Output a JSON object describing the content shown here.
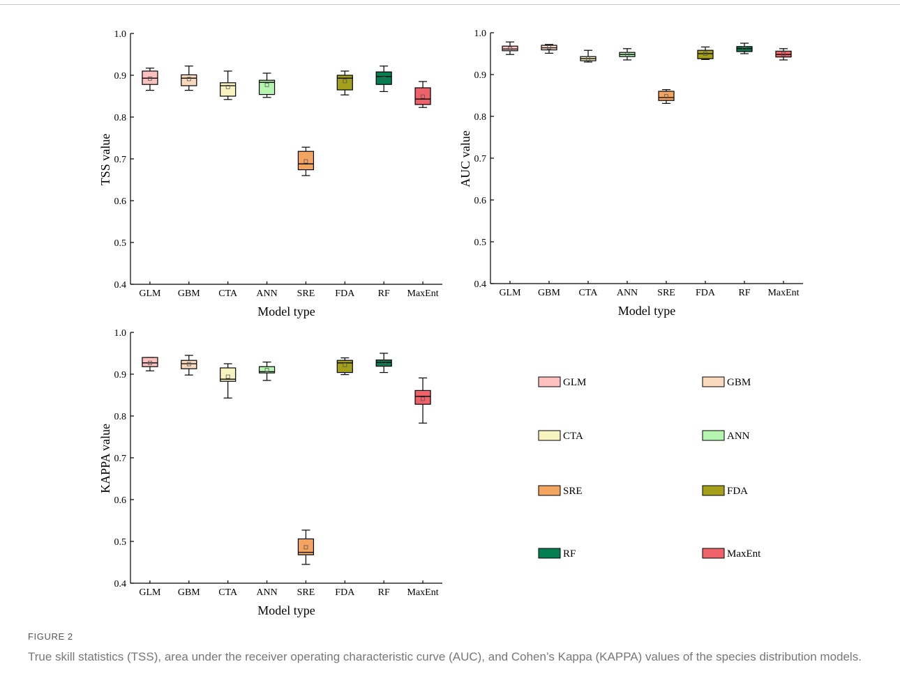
{
  "caption": {
    "label": "FIGURE 2",
    "text": "True skill statistics (TSS), area under the receiver operating characteristic curve (AUC), and Cohen’s Kappa (KAPPA) values of the species distribution models."
  },
  "legend": [
    {
      "name": "GLM",
      "color": "#FFC0C0"
    },
    {
      "name": "GBM",
      "color": "#FAD9BC"
    },
    {
      "name": "CTA",
      "color": "#F7F4C0"
    },
    {
      "name": "ANN",
      "color": "#B4F5B0"
    },
    {
      "name": "SRE",
      "color": "#F4A461"
    },
    {
      "name": "FDA",
      "color": "#A4A01C"
    },
    {
      "name": "RF",
      "color": "#037F51"
    },
    {
      "name": "MaxEnt",
      "color": "#F0626A"
    }
  ],
  "chart_data": [
    {
      "type": "box",
      "xlabel": "Model type",
      "ylabel": "TSS value",
      "ylim": [
        0.4,
        1.0
      ],
      "yticks": [
        "0.4",
        "0.5",
        "0.6",
        "0.7",
        "0.8",
        "0.9",
        "1.0"
      ],
      "categories": [
        "GLM",
        "GBM",
        "CTA",
        "ANN",
        "SRE",
        "FDA",
        "RF",
        "MaxEnt"
      ],
      "boxes": [
        {
          "min": 0.864,
          "q1": 0.878,
          "median": 0.893,
          "q3": 0.91,
          "max": 0.917,
          "mean": 0.892
        },
        {
          "min": 0.864,
          "q1": 0.875,
          "median": 0.893,
          "q3": 0.901,
          "max": 0.922,
          "mean": 0.891
        },
        {
          "min": 0.842,
          "q1": 0.85,
          "median": 0.875,
          "q3": 0.882,
          "max": 0.91,
          "mean": 0.872
        },
        {
          "min": 0.847,
          "q1": 0.854,
          "median": 0.883,
          "q3": 0.888,
          "max": 0.905,
          "mean": 0.877
        },
        {
          "min": 0.66,
          "q1": 0.674,
          "median": 0.688,
          "q3": 0.718,
          "max": 0.728,
          "mean": 0.694
        },
        {
          "min": 0.853,
          "q1": 0.865,
          "median": 0.893,
          "q3": 0.9,
          "max": 0.91,
          "mean": 0.886
        },
        {
          "min": 0.861,
          "q1": 0.878,
          "median": 0.897,
          "q3": 0.908,
          "max": 0.922,
          "mean": 0.892
        },
        {
          "min": 0.823,
          "q1": 0.83,
          "median": 0.843,
          "q3": 0.87,
          "max": 0.885,
          "mean": 0.849
        }
      ]
    },
    {
      "type": "box",
      "xlabel": "Model type",
      "ylabel": "AUC value",
      "ylim": [
        0.4,
        1.0
      ],
      "yticks": [
        "0.4",
        "0.5",
        "0.6",
        "0.7",
        "0.8",
        "0.9",
        "1.0"
      ],
      "categories": [
        "GLM",
        "GBM",
        "CTA",
        "ANN",
        "SRE",
        "FDA",
        "RF",
        "MaxEnt"
      ],
      "boxes": [
        {
          "min": 0.948,
          "q1": 0.957,
          "median": 0.961,
          "q3": 0.968,
          "max": 0.978,
          "mean": 0.962
        },
        {
          "min": 0.951,
          "q1": 0.959,
          "median": 0.964,
          "q3": 0.97,
          "max": 0.972,
          "mean": 0.965
        },
        {
          "min": 0.93,
          "q1": 0.933,
          "median": 0.938,
          "q3": 0.943,
          "max": 0.958,
          "mean": 0.938
        },
        {
          "min": 0.935,
          "q1": 0.943,
          "median": 0.948,
          "q3": 0.953,
          "max": 0.962,
          "mean": 0.948
        },
        {
          "min": 0.831,
          "q1": 0.838,
          "median": 0.845,
          "q3": 0.86,
          "max": 0.864,
          "mean": 0.848
        },
        {
          "min": 0.936,
          "q1": 0.938,
          "median": 0.95,
          "q3": 0.958,
          "max": 0.966,
          "mean": 0.95
        },
        {
          "min": 0.95,
          "q1": 0.955,
          "median": 0.962,
          "q3": 0.967,
          "max": 0.975,
          "mean": 0.962
        },
        {
          "min": 0.935,
          "q1": 0.942,
          "median": 0.948,
          "q3": 0.956,
          "max": 0.962,
          "mean": 0.949
        }
      ]
    },
    {
      "type": "box",
      "xlabel": "Model type",
      "ylabel": "KAPPA value",
      "ylim": [
        0.4,
        1.0
      ],
      "yticks": [
        "0.4",
        "0.5",
        "0.6",
        "0.7",
        "0.8",
        "0.9",
        "1.0"
      ],
      "categories": [
        "GLM",
        "GBM",
        "CTA",
        "ANN",
        "SRE",
        "FDA",
        "RF",
        "MaxEnt"
      ],
      "boxes": [
        {
          "min": 0.908,
          "q1": 0.918,
          "median": 0.927,
          "q3": 0.94,
          "max": 0.94,
          "mean": 0.927
        },
        {
          "min": 0.898,
          "q1": 0.913,
          "median": 0.925,
          "q3": 0.933,
          "max": 0.945,
          "mean": 0.924
        },
        {
          "min": 0.843,
          "q1": 0.883,
          "median": 0.888,
          "q3": 0.915,
          "max": 0.925,
          "mean": 0.894
        },
        {
          "min": 0.885,
          "q1": 0.903,
          "median": 0.906,
          "q3": 0.918,
          "max": 0.929,
          "mean": 0.91
        },
        {
          "min": 0.445,
          "q1": 0.468,
          "median": 0.474,
          "q3": 0.506,
          "max": 0.527,
          "mean": 0.486
        },
        {
          "min": 0.899,
          "q1": 0.904,
          "median": 0.927,
          "q3": 0.933,
          "max": 0.939,
          "mean": 0.922
        },
        {
          "min": 0.904,
          "q1": 0.919,
          "median": 0.928,
          "q3": 0.934,
          "max": 0.95,
          "mean": 0.927
        },
        {
          "min": 0.783,
          "q1": 0.828,
          "median": 0.847,
          "q3": 0.861,
          "max": 0.891,
          "mean": 0.841
        }
      ]
    }
  ]
}
